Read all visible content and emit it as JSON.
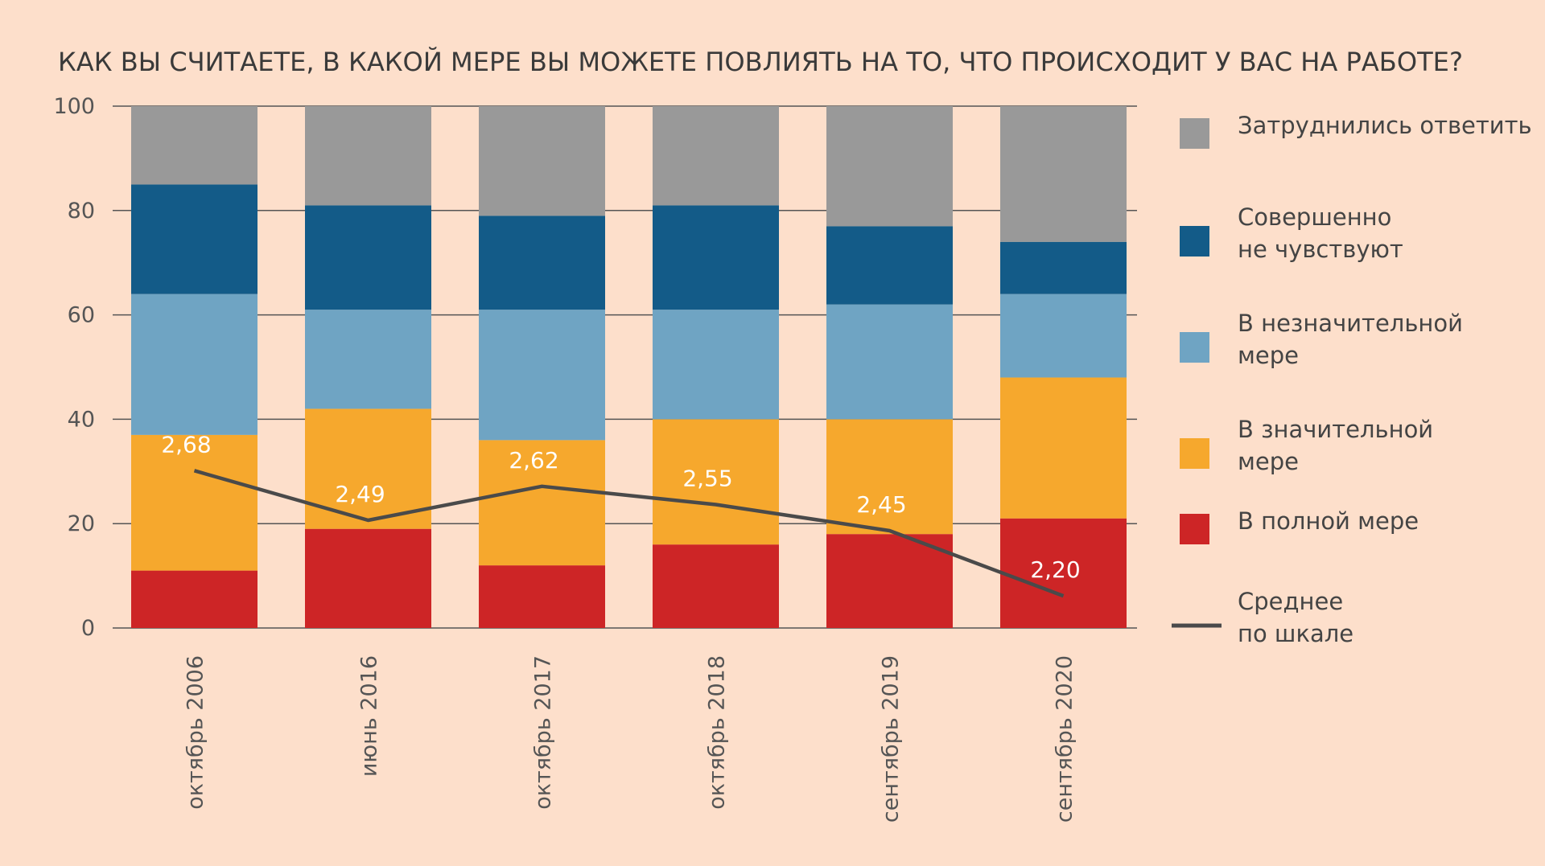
{
  "title": "КАК ВЫ СЧИТАЕТЕ, В КАКОЙ МЕРЕ ВЫ МОЖЕТЕ ПОВЛИЯТЬ НА ТО, ЧТО ПРОИСХОДИТ У ВАС НА РАБОТЕ?",
  "chart_data": {
    "type": "bar",
    "stacked": true,
    "title": "КАК ВЫ СЧИТАЕТЕ, В КАКОЙ МЕРЕ ВЫ МОЖЕТЕ ПОВЛИЯТЬ НА ТО, ЧТО ПРОИСХОДИТ У ВАС НА РАБОТЕ?",
    "categories": [
      "октябрь 2006",
      "июнь 2016",
      "октябрь 2017",
      "октябрь 2018",
      "сентябрь 2019",
      "сентябрь 2020"
    ],
    "ylim": [
      0,
      100
    ],
    "yticks": [
      "0",
      "20",
      "40",
      "60",
      "80",
      "100"
    ],
    "grid": true,
    "legend_position": "right",
    "series": [
      {
        "name": "В полной мере",
        "color": "#cd2526",
        "values": [
          11,
          19,
          12,
          16,
          18,
          21
        ]
      },
      {
        "name": "В значительной мере",
        "color": "#f6a82d",
        "values": [
          26,
          23,
          24,
          24,
          22,
          27
        ]
      },
      {
        "name": "В незначительной мере",
        "color": "#6fa4c3",
        "values": [
          27,
          19,
          25,
          21,
          22,
          16
        ]
      },
      {
        "name": "Совершенно не чувствуют",
        "color": "#135b88",
        "values": [
          21,
          20,
          18,
          20,
          15,
          10
        ]
      },
      {
        "name": "Затруднились ответить",
        "color": "#999999",
        "values": [
          15,
          19,
          21,
          19,
          23,
          26
        ]
      }
    ],
    "average": {
      "name": "Среднее по шкале",
      "color": "#4a4a4a",
      "values": [
        2.68,
        2.49,
        2.62,
        2.55,
        2.45,
        2.2
      ],
      "labels": [
        "2,68",
        "2,49",
        "2,62",
        "2,55",
        "2,45",
        "2,20"
      ]
    }
  },
  "legend": [
    {
      "lines": [
        "Затруднились ответить"
      ],
      "color": "#999999",
      "kind": "box"
    },
    {
      "lines": [
        "Совершенно",
        "не чувствуют"
      ],
      "color": "#135b88",
      "kind": "box"
    },
    {
      "lines": [
        "В незначительной",
        "мере"
      ],
      "color": "#6fa4c3",
      "kind": "box"
    },
    {
      "lines": [
        "В значительной",
        "мере"
      ],
      "color": "#f6a82d",
      "kind": "box"
    },
    {
      "lines": [
        "В полной мере"
      ],
      "color": "#cd2526",
      "kind": "box"
    },
    {
      "lines": [
        "Среднее",
        "по шкале"
      ],
      "color": "#4a4a4a",
      "kind": "line"
    }
  ]
}
